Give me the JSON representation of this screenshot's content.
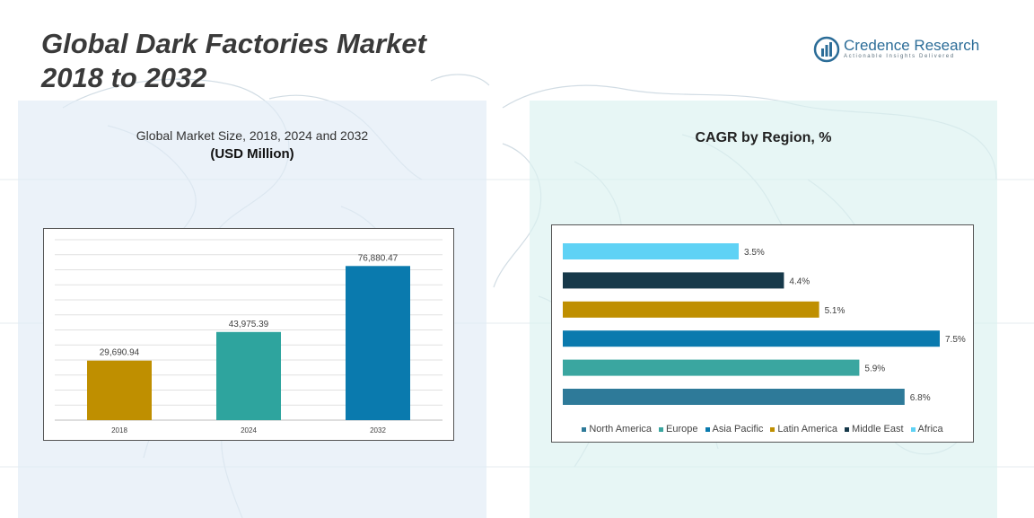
{
  "header": {
    "title_line1": "Global Dark Factories Market",
    "title_line2": "2018 to 2032"
  },
  "brand": {
    "name": "Credence Research",
    "tagline": "Actionable Insights Delivered",
    "color": "#2c6d98"
  },
  "left_panel": {
    "subtitle": "Global Market Size, 2018, 2024 and 2032",
    "unit": "(USD Million)"
  },
  "right_panel": {
    "title": "CAGR by Region, %"
  },
  "chart_data": [
    {
      "type": "bar",
      "title": "Global Market Size, 2018, 2024 and 2032",
      "ylabel": "(USD Million)",
      "categories": [
        "2018",
        "2024",
        "2032"
      ],
      "values": [
        29690.94,
        43975.39,
        76880.47
      ],
      "data_labels": [
        "29,690.94",
        "43,975.39",
        "76,880.47"
      ],
      "colors": [
        "#bf8f00",
        "#2ea49e",
        "#0a7aae"
      ],
      "ylim": [
        0,
        90000
      ],
      "grid": true
    },
    {
      "type": "bar",
      "orientation": "horizontal",
      "title": "CAGR by Region, %",
      "categories": [
        "North America",
        "Europe",
        "Asia Pacific",
        "Latin America",
        "Middle East",
        "Africa"
      ],
      "values": [
        6.8,
        5.9,
        7.5,
        5.1,
        4.4,
        3.5
      ],
      "data_labels": [
        "6.8%",
        "5.9%",
        "7.5%",
        "5.1%",
        "4.4%",
        "3.5%"
      ],
      "colors": [
        "#2e7a99",
        "#3aa6a0",
        "#0a7aae",
        "#bf8f00",
        "#17394a",
        "#5fd2f5"
      ],
      "xlim": [
        0,
        8
      ],
      "legend": "bottom"
    }
  ]
}
